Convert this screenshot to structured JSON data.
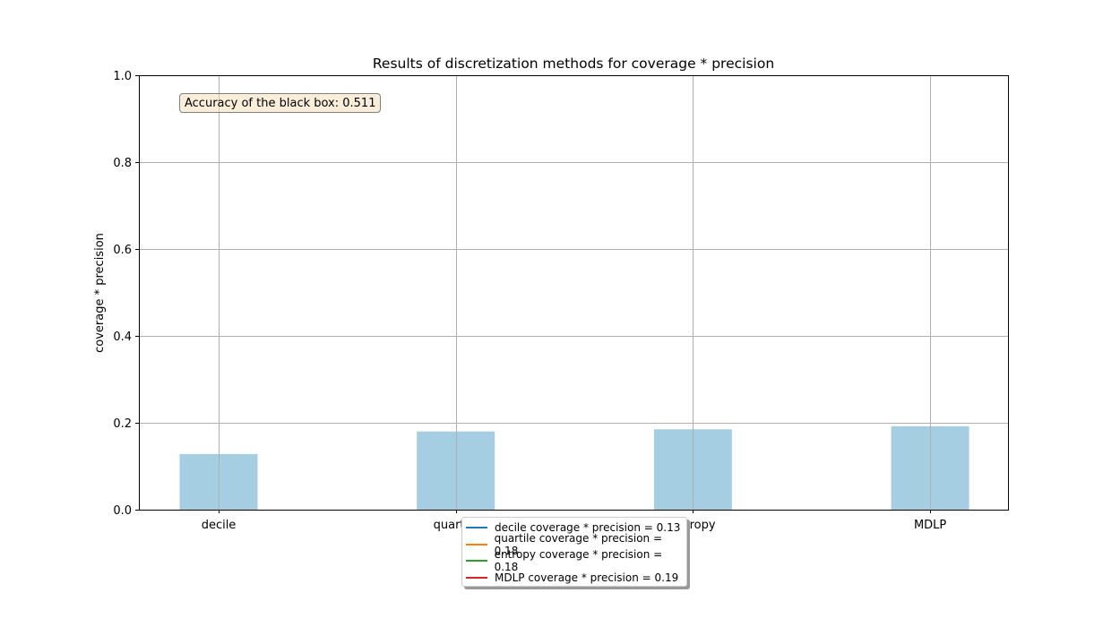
{
  "chart_data": {
    "type": "bar",
    "title": "Results of discretization methods for coverage * precision",
    "xlabel": "",
    "ylabel": "coverage * precision",
    "categories": [
      "decile",
      "quartile",
      "entropy",
      "MDLP"
    ],
    "values": [
      0.128,
      0.18,
      0.185,
      0.192
    ],
    "ylim": [
      0,
      1
    ],
    "yticks": [
      "0.0",
      "0.2",
      "0.4",
      "0.6",
      "0.8",
      "1.0"
    ],
    "grid": true,
    "bar_color": "#a6cee3",
    "annotation": "Accuracy of the black box: 0.511",
    "legend": {
      "placement": "bottom-center",
      "entries": [
        {
          "label": "decile coverage * precision = 0.13",
          "color": "#1f77b4"
        },
        {
          "label": "quartile coverage * precision = 0.18",
          "color": "#ff7f0e"
        },
        {
          "label": "entropy coverage * precision = 0.18",
          "color": "#2ca02c"
        },
        {
          "label": "MDLP coverage * precision = 0.19",
          "color": "#d62728"
        }
      ]
    }
  }
}
